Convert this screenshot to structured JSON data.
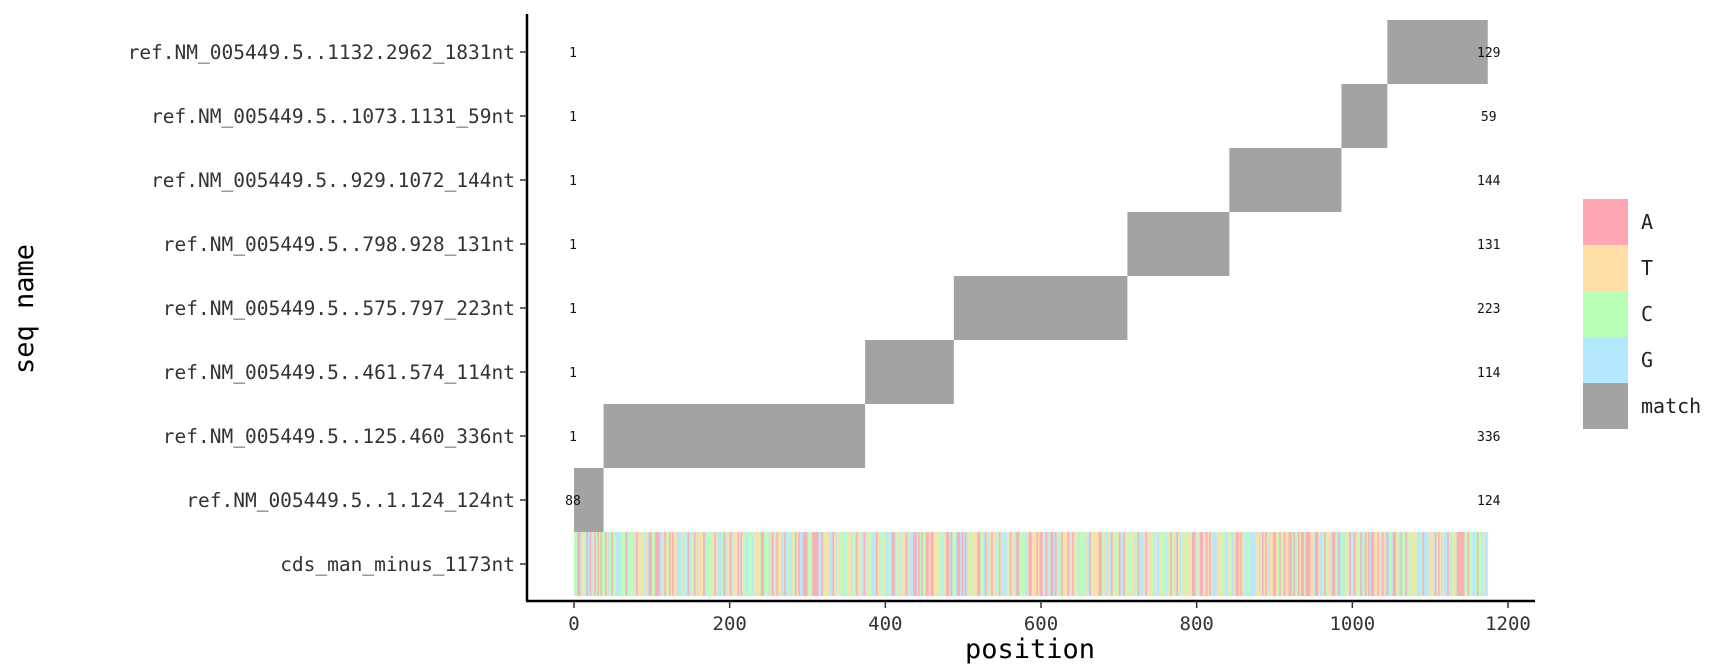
{
  "chart_data": {
    "type": "alignment",
    "xlabel": "position",
    "ylabel": "seq name",
    "xlim": [
      -60,
      1230
    ],
    "xticks": [
      0,
      200,
      400,
      600,
      800,
      1000,
      1200
    ],
    "reference": {
      "name": "cds_man_minus_1173nt",
      "start": 0,
      "end": 1173
    },
    "rows": [
      {
        "name": "ref.NM_005449.5..1.124_124nt",
        "start": 0,
        "end": 38,
        "left_label": "88",
        "right_label": "124"
      },
      {
        "name": "ref.NM_005449.5..125.460_336nt",
        "start": 38,
        "end": 374,
        "left_label": "1",
        "right_label": "336"
      },
      {
        "name": "ref.NM_005449.5..461.574_114nt",
        "start": 374,
        "end": 488,
        "left_label": "1",
        "right_label": "114"
      },
      {
        "name": "ref.NM_005449.5..575.797_223nt",
        "start": 488,
        "end": 711,
        "left_label": "1",
        "right_label": "223"
      },
      {
        "name": "ref.NM_005449.5..798.928_131nt",
        "start": 711,
        "end": 842,
        "left_label": "1",
        "right_label": "131"
      },
      {
        "name": "ref.NM_005449.5..929.1072_144nt",
        "start": 842,
        "end": 986,
        "left_label": "1",
        "right_label": "144"
      },
      {
        "name": "ref.NM_005449.5..1073.1131_59nt",
        "start": 986,
        "end": 1045,
        "left_label": "1",
        "right_label": "59"
      },
      {
        "name": "ref.NM_005449.5..1132.2962_1831nt",
        "start": 1045,
        "end": 1174,
        "left_label": "1",
        "right_label": "129"
      }
    ],
    "legend": {
      "placement": "right",
      "entries": [
        {
          "label": "A",
          "color": "#FFA6B4"
        },
        {
          "label": "T",
          "color": "#FFDEA6"
        },
        {
          "label": "C",
          "color": "#B8FFB5"
        },
        {
          "label": "G",
          "color": "#B4E8FF"
        },
        {
          "label": "match",
          "color": "#A3A3A3"
        }
      ]
    },
    "grid": false
  }
}
